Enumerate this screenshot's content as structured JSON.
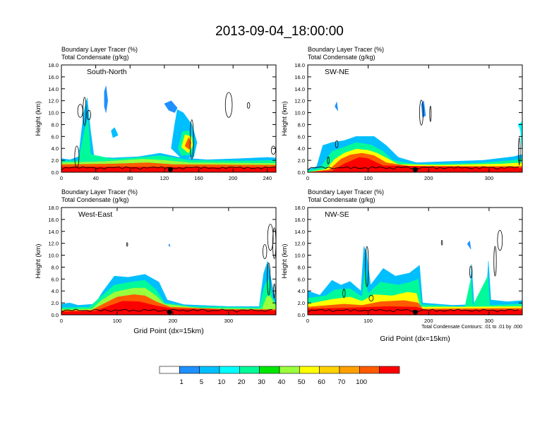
{
  "title": "2013-09-04_18:00:00",
  "chart_data": [
    {
      "type": "heatmap",
      "name": "South-North",
      "panel_label": "South-North",
      "subtitle_lines": [
        "Boundary Layer Tracer   (%)",
        "Total Condensate   (g/kg)"
      ],
      "ylabel": "Height (km)",
      "xlabel": "",
      "xlim": [
        0,
        250
      ],
      "ylim": [
        0,
        18
      ],
      "xticks": [
        0,
        40,
        80,
        120,
        160,
        200,
        240
      ],
      "yticks": [
        0,
        2,
        4,
        6,
        8,
        10,
        12,
        14,
        16,
        18
      ],
      "marker_x": 127,
      "footnote": ""
    },
    {
      "type": "heatmap",
      "name": "SW-NE",
      "panel_label": "SW-NE",
      "subtitle_lines": [
        "Boundary Layer Tracer   (%)",
        "Total Condensate   (g/kg)"
      ],
      "ylabel": "Height (km)",
      "xlabel": "",
      "xlim": [
        0,
        355
      ],
      "ylim": [
        0,
        18
      ],
      "xticks": [
        0,
        100,
        200,
        300
      ],
      "yticks": [
        0,
        2,
        4,
        6,
        8,
        10,
        12,
        14,
        16,
        18
      ],
      "marker_x": 178,
      "footnote": ""
    },
    {
      "type": "heatmap",
      "name": "West-East",
      "panel_label": "West-East",
      "subtitle_lines": [
        "Boundary Layer Tracer   (%)",
        "Total Condensate   (g/kg)"
      ],
      "ylabel": "Height (km)",
      "xlabel": "Grid Point (dx=15km)",
      "xlim": [
        0,
        385
      ],
      "ylim": [
        0,
        18
      ],
      "xticks": [
        0,
        100,
        200,
        300
      ],
      "yticks": [
        0,
        2,
        4,
        6,
        8,
        10,
        12,
        14,
        16,
        18
      ],
      "marker_x": 194,
      "footnote": ""
    },
    {
      "type": "heatmap",
      "name": "NW-SE",
      "panel_label": "NW-SE",
      "subtitle_lines": [
        "Boundary Layer Tracer   (%)",
        "Total Condensate   (g/kg)"
      ],
      "ylabel": "Height (km)",
      "xlabel": "Grid Point (dx=15km)",
      "xlim": [
        0,
        355
      ],
      "ylim": [
        0,
        18
      ],
      "xticks": [
        0,
        100,
        200,
        300
      ],
      "yticks": [
        0,
        2,
        4,
        6,
        8,
        10,
        12,
        14,
        16,
        18
      ],
      "marker_x": 178,
      "footnote": "Total Condensate Contours: .01 to .01 by .000"
    }
  ],
  "colorbar": {
    "labels": [
      "1",
      "5",
      "10",
      "20",
      "30",
      "40",
      "50",
      "60",
      "70",
      "100"
    ],
    "colors": [
      "#ffffff",
      "#1e90ff",
      "#00bfff",
      "#00ffff",
      "#00fa9a",
      "#00e600",
      "#9aff3c",
      "#ffff00",
      "#ffd200",
      "#ffa000",
      "#ff5a00",
      "#ff0000"
    ]
  }
}
